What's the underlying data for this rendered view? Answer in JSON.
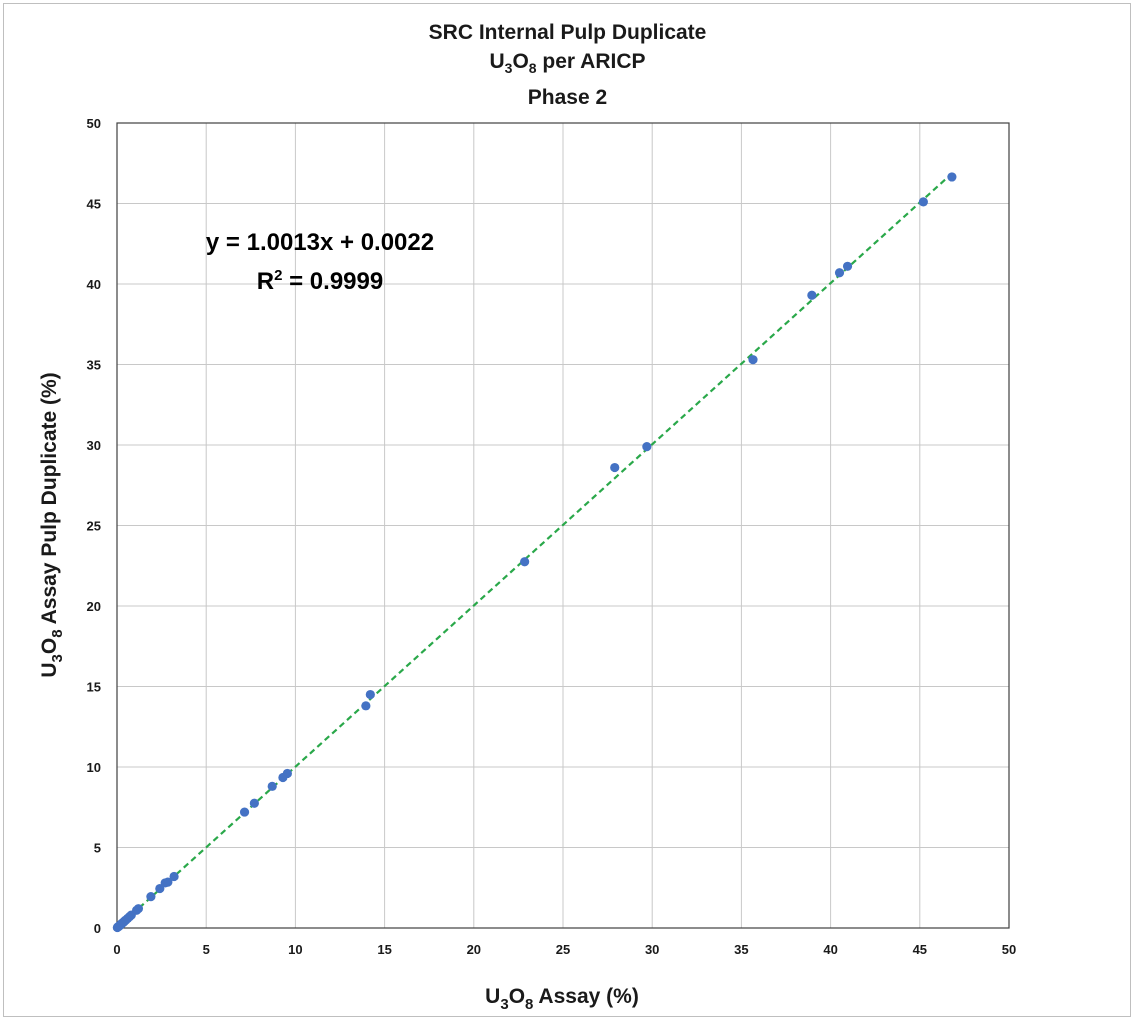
{
  "chart_data": {
    "type": "scatter",
    "title_lines": [
      "SRC Internal Pulp Duplicate",
      "U3O8 per ARICP",
      "Phase 2"
    ],
    "title": {
      "line1": "SRC Internal Pulp Duplicate",
      "line2_prefix": "U",
      "line2_sub1": "3",
      "line2_mid": "O",
      "line2_sub2": "8",
      "line2_suffix": " per ARICP",
      "line3": "Phase 2"
    },
    "xlabel": {
      "prefix": "U",
      "sub1": "3",
      "mid": "O",
      "sub2": "8",
      "suffix": " Assay (%)"
    },
    "ylabel": {
      "prefix": "U",
      "sub1": "3",
      "mid": "O",
      "sub2": "8",
      "suffix": " Assay Pulp Duplicate (%)"
    },
    "xlim": [
      0,
      50
    ],
    "ylim": [
      0,
      50
    ],
    "x_ticks": [
      0,
      5,
      10,
      15,
      20,
      25,
      30,
      35,
      40,
      45,
      50
    ],
    "y_ticks": [
      0,
      5,
      10,
      15,
      20,
      25,
      30,
      35,
      40,
      45,
      50
    ],
    "grid": true,
    "marker_color": "#4472c4",
    "trendline": {
      "slope": 1.0013,
      "intercept": 0.0022,
      "x_range": [
        0,
        46.8
      ],
      "color": "#2aa84a",
      "style": "dashed",
      "equation": "y = 1.0013x + 0.0022",
      "r2_prefix": "R",
      "r2_sup": "2",
      "r2_suffix": " = 0.9999"
    },
    "points": [
      {
        "x": 0.02,
        "y": 0.03
      },
      {
        "x": 0.05,
        "y": 0.06
      },
      {
        "x": 0.08,
        "y": 0.09
      },
      {
        "x": 0.12,
        "y": 0.12
      },
      {
        "x": 0.15,
        "y": 0.16
      },
      {
        "x": 0.2,
        "y": 0.2
      },
      {
        "x": 0.25,
        "y": 0.26
      },
      {
        "x": 0.3,
        "y": 0.3
      },
      {
        "x": 0.35,
        "y": 0.35
      },
      {
        "x": 0.4,
        "y": 0.4
      },
      {
        "x": 0.45,
        "y": 0.46
      },
      {
        "x": 0.5,
        "y": 0.5
      },
      {
        "x": 0.6,
        "y": 0.6
      },
      {
        "x": 0.7,
        "y": 0.7
      },
      {
        "x": 0.8,
        "y": 0.8
      },
      {
        "x": 1.1,
        "y": 1.1
      },
      {
        "x": 1.2,
        "y": 1.2
      },
      {
        "x": 1.9,
        "y": 1.95
      },
      {
        "x": 2.4,
        "y": 2.45
      },
      {
        "x": 2.7,
        "y": 2.8
      },
      {
        "x": 2.85,
        "y": 2.85
      },
      {
        "x": 3.2,
        "y": 3.2
      },
      {
        "x": 7.15,
        "y": 7.2
      },
      {
        "x": 7.7,
        "y": 7.75
      },
      {
        "x": 8.7,
        "y": 8.8
      },
      {
        "x": 9.3,
        "y": 9.35
      },
      {
        "x": 9.55,
        "y": 9.6
      },
      {
        "x": 13.95,
        "y": 13.8
      },
      {
        "x": 14.2,
        "y": 14.5
      },
      {
        "x": 22.85,
        "y": 22.75
      },
      {
        "x": 27.9,
        "y": 28.6
      },
      {
        "x": 29.7,
        "y": 29.9
      },
      {
        "x": 35.65,
        "y": 35.3
      },
      {
        "x": 38.95,
        "y": 39.3
      },
      {
        "x": 40.5,
        "y": 40.7
      },
      {
        "x": 40.95,
        "y": 41.1
      },
      {
        "x": 45.2,
        "y": 45.1
      },
      {
        "x": 46.8,
        "y": 46.65
      }
    ]
  }
}
